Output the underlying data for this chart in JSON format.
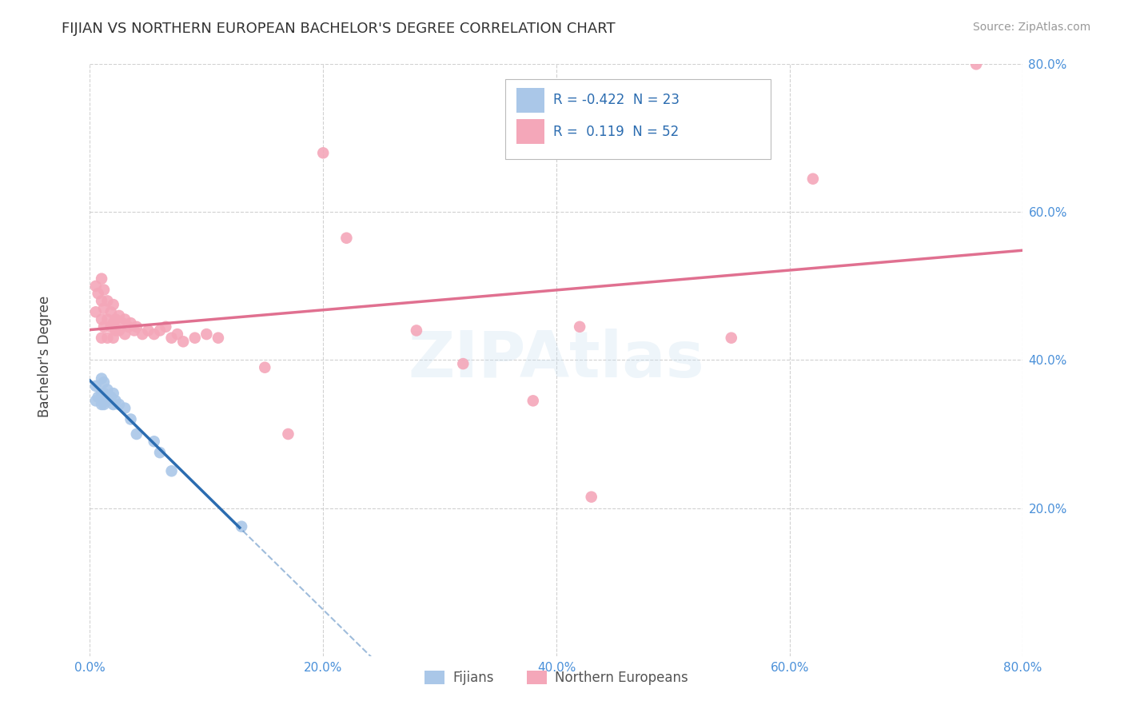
{
  "title": "FIJIAN VS NORTHERN EUROPEAN BACHELOR'S DEGREE CORRELATION CHART",
  "source": "Source: ZipAtlas.com",
  "ylabel": "Bachelor's Degree",
  "watermark": "ZIPAtlas",
  "legend_labels": [
    "Fijians",
    "Northern Europeans"
  ],
  "fijian_color": "#aac7e8",
  "northern_color": "#f4a7b9",
  "fijian_line_color": "#2b6cb0",
  "northern_line_color": "#e07090",
  "fijian_R": -0.422,
  "fijian_N": 23,
  "northern_R": 0.119,
  "northern_N": 52,
  "xlim": [
    0.0,
    0.8
  ],
  "ylim": [
    0.0,
    0.8
  ],
  "xtick_vals": [
    0.0,
    0.2,
    0.4,
    0.6,
    0.8
  ],
  "xtick_labels": [
    "0.0%",
    "20.0%",
    "40.0%",
    "60.0%",
    "80.0%"
  ],
  "ytick_vals": [
    0.2,
    0.4,
    0.6,
    0.8
  ],
  "ytick_labels": [
    "20.0%",
    "40.0%",
    "60.0%",
    "80.0%"
  ],
  "grid_color": "#cccccc",
  "background_color": "#ffffff",
  "fijian_scatter": [
    [
      0.005,
      0.365
    ],
    [
      0.005,
      0.345
    ],
    [
      0.007,
      0.35
    ],
    [
      0.01,
      0.375
    ],
    [
      0.01,
      0.355
    ],
    [
      0.01,
      0.34
    ],
    [
      0.012,
      0.37
    ],
    [
      0.012,
      0.355
    ],
    [
      0.012,
      0.34
    ],
    [
      0.015,
      0.36
    ],
    [
      0.015,
      0.345
    ],
    [
      0.018,
      0.35
    ],
    [
      0.02,
      0.355
    ],
    [
      0.02,
      0.34
    ],
    [
      0.022,
      0.345
    ],
    [
      0.025,
      0.34
    ],
    [
      0.03,
      0.335
    ],
    [
      0.035,
      0.32
    ],
    [
      0.04,
      0.3
    ],
    [
      0.055,
      0.29
    ],
    [
      0.06,
      0.275
    ],
    [
      0.07,
      0.25
    ],
    [
      0.13,
      0.175
    ]
  ],
  "northern_scatter": [
    [
      0.005,
      0.5
    ],
    [
      0.005,
      0.465
    ],
    [
      0.007,
      0.49
    ],
    [
      0.01,
      0.51
    ],
    [
      0.01,
      0.48
    ],
    [
      0.01,
      0.455
    ],
    [
      0.01,
      0.43
    ],
    [
      0.012,
      0.495
    ],
    [
      0.012,
      0.47
    ],
    [
      0.012,
      0.445
    ],
    [
      0.015,
      0.48
    ],
    [
      0.015,
      0.455
    ],
    [
      0.015,
      0.43
    ],
    [
      0.018,
      0.465
    ],
    [
      0.018,
      0.445
    ],
    [
      0.02,
      0.475
    ],
    [
      0.02,
      0.45
    ],
    [
      0.02,
      0.43
    ],
    [
      0.022,
      0.455
    ],
    [
      0.022,
      0.44
    ],
    [
      0.025,
      0.46
    ],
    [
      0.025,
      0.44
    ],
    [
      0.028,
      0.45
    ],
    [
      0.03,
      0.455
    ],
    [
      0.03,
      0.435
    ],
    [
      0.033,
      0.445
    ],
    [
      0.035,
      0.45
    ],
    [
      0.038,
      0.44
    ],
    [
      0.04,
      0.445
    ],
    [
      0.045,
      0.435
    ],
    [
      0.05,
      0.44
    ],
    [
      0.055,
      0.435
    ],
    [
      0.06,
      0.44
    ],
    [
      0.065,
      0.445
    ],
    [
      0.07,
      0.43
    ],
    [
      0.075,
      0.435
    ],
    [
      0.08,
      0.425
    ],
    [
      0.09,
      0.43
    ],
    [
      0.1,
      0.435
    ],
    [
      0.11,
      0.43
    ],
    [
      0.15,
      0.39
    ],
    [
      0.17,
      0.3
    ],
    [
      0.2,
      0.68
    ],
    [
      0.22,
      0.565
    ],
    [
      0.28,
      0.44
    ],
    [
      0.32,
      0.395
    ],
    [
      0.38,
      0.345
    ],
    [
      0.42,
      0.445
    ],
    [
      0.43,
      0.215
    ],
    [
      0.55,
      0.43
    ],
    [
      0.62,
      0.645
    ],
    [
      0.76,
      0.8
    ]
  ],
  "fijian_line_x_solid_end": 0.13,
  "title_fontsize": 13,
  "tick_fontsize": 11,
  "tick_color": "#4a90d9",
  "ylabel_fontsize": 12,
  "ylabel_color": "#444444"
}
